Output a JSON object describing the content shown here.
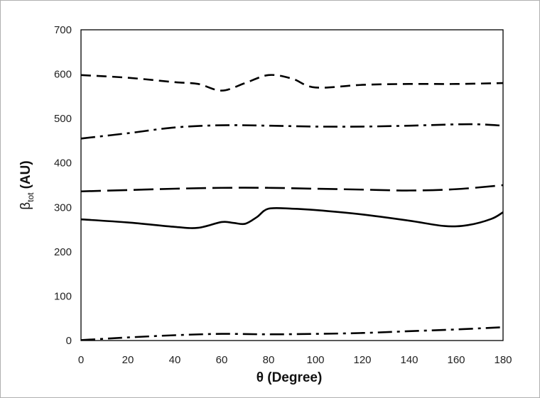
{
  "chart_data": {
    "type": "line",
    "xlabel": "θ (Degree)",
    "ylabel": {
      "symbol": "β",
      "subscript": "tot",
      "unit": "(AU)"
    },
    "xlim": [
      0,
      180
    ],
    "ylim": [
      0,
      700
    ],
    "x_ticks": [
      "0",
      "20",
      "40",
      "60",
      "80",
      "100",
      "120",
      "140",
      "160",
      "180"
    ],
    "y_ticks": [
      "0",
      "100",
      "200",
      "300",
      "400",
      "500",
      "600",
      "700"
    ],
    "grid": false,
    "legend": "none",
    "line_color": "#000000",
    "series": [
      {
        "style": "short-dash",
        "x": [
          0,
          20,
          40,
          50,
          60,
          70,
          80,
          90,
          100,
          120,
          140,
          160,
          180
        ],
        "y": [
          598,
          592,
          582,
          578,
          563,
          580,
          598,
          590,
          570,
          576,
          578,
          578,
          580
        ]
      },
      {
        "style": "dash-dot",
        "x": [
          0,
          20,
          40,
          60,
          80,
          100,
          120,
          140,
          160,
          170,
          180
        ],
        "y": [
          455,
          467,
          480,
          485,
          484,
          482,
          482,
          484,
          487,
          487,
          484
        ]
      },
      {
        "style": "long-dash",
        "x": [
          0,
          20,
          40,
          60,
          80,
          100,
          120,
          140,
          160,
          180
        ],
        "y": [
          336,
          339,
          342,
          344,
          344,
          342,
          340,
          338,
          341,
          350
        ]
      },
      {
        "style": "solid",
        "x": [
          0,
          20,
          40,
          50,
          60,
          65,
          70,
          75,
          80,
          90,
          100,
          120,
          140,
          155,
          165,
          175,
          180
        ],
        "y": [
          273,
          266,
          256,
          254,
          267,
          265,
          263,
          278,
          297,
          297,
          294,
          284,
          270,
          258,
          260,
          274,
          289
        ]
      },
      {
        "style": "dash-dot",
        "x": [
          0,
          10,
          20,
          40,
          60,
          80,
          100,
          120,
          140,
          160,
          180
        ],
        "y": [
          1,
          4,
          7,
          12,
          15,
          14,
          15,
          17,
          21,
          25,
          30
        ]
      }
    ]
  }
}
